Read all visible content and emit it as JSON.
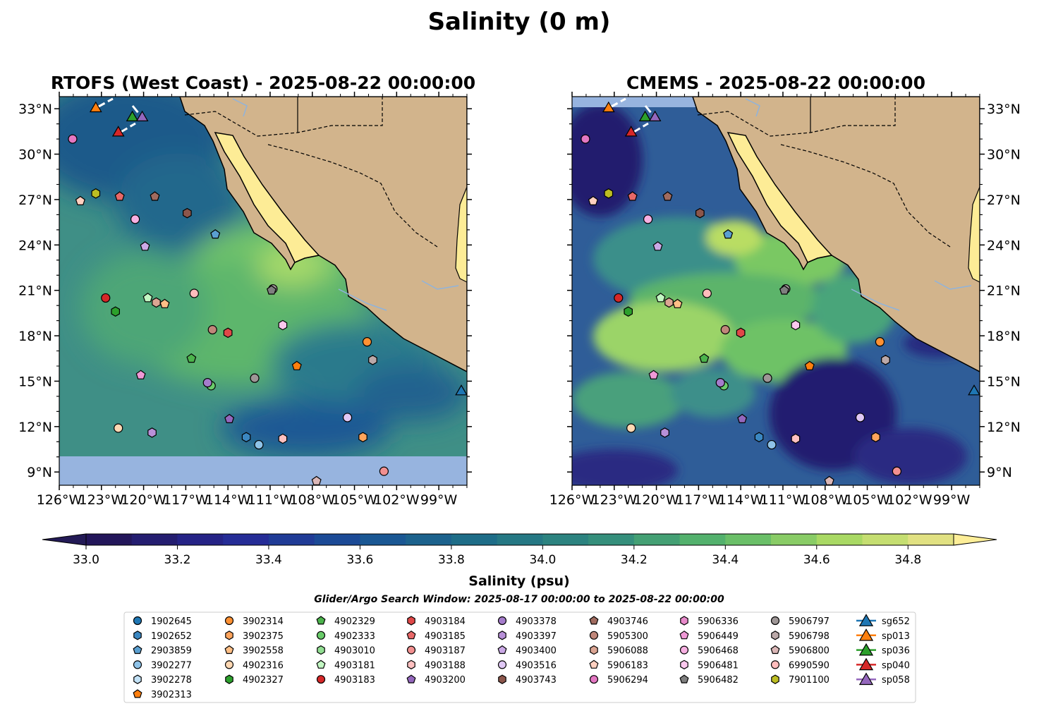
{
  "figure": {
    "title": "Salinity (0 m)",
    "left_title": "RTOFS (West Coast) - 2025-08-22 00:00:00",
    "right_title": "CMEMS - 2025-08-22 00:00:00",
    "search_window": "Glider/Argo Search Window: 2025-08-17 00:00:00 to 2025-08-22 00:00:00"
  },
  "colorbar": {
    "label": "Salinity (psu)",
    "min": 33.0,
    "max": 34.9,
    "step": 0.1,
    "ticks": [
      "33.0",
      "33.2",
      "33.4",
      "33.6",
      "33.8",
      "34.0",
      "34.2",
      "34.4",
      "34.6",
      "34.8"
    ],
    "extend": "both"
  },
  "axes": {
    "lon_range": [
      -126,
      -97
    ],
    "lat_range": [
      8.1,
      33.8
    ],
    "lon_ticks": [
      "126°W",
      "123°W",
      "120°W",
      "117°W",
      "114°W",
      "111°W",
      "108°W",
      "105°W",
      "102°W",
      "99°W"
    ],
    "lat_ticks": [
      "9°N",
      "12°N",
      "15°N",
      "18°N",
      "21°N",
      "24°N",
      "27°N",
      "30°N",
      "33°N"
    ]
  },
  "colors": {
    "land": "#d2b48c",
    "inland_water": "#fdec96",
    "nodata": "#97b4df"
  },
  "legend": [
    {
      "id": "1902645",
      "shape": "circle",
      "color": "#1f77b4"
    },
    {
      "id": "1902652",
      "shape": "hexagon",
      "color": "#3b87c1"
    },
    {
      "id": "2903859",
      "shape": "pentagon",
      "color": "#5a9fd0"
    },
    {
      "id": "3902277",
      "shape": "circle",
      "color": "#8fc3e8"
    },
    {
      "id": "3902278",
      "shape": "hexagon",
      "color": "#c3e2f7"
    },
    {
      "id": "3902313",
      "shape": "pentagon",
      "color": "#ff7f0e"
    },
    {
      "id": "3902314",
      "shape": "circle",
      "color": "#ff9133"
    },
    {
      "id": "3902375",
      "shape": "hexagon",
      "color": "#ffa45c"
    },
    {
      "id": "3902558",
      "shape": "pentagon",
      "color": "#ffbf86"
    },
    {
      "id": "4902316",
      "shape": "circle",
      "color": "#ffd8b3"
    },
    {
      "id": "4902327",
      "shape": "hexagon",
      "color": "#2ca02c"
    },
    {
      "id": "4902329",
      "shape": "pentagon",
      "color": "#4cb34c"
    },
    {
      "id": "4902333",
      "shape": "circle",
      "color": "#6acc6a"
    },
    {
      "id": "4903010",
      "shape": "hexagon",
      "color": "#92de92"
    },
    {
      "id": "4903181",
      "shape": "pentagon",
      "color": "#c3f7c3"
    },
    {
      "id": "4903183",
      "shape": "circle",
      "color": "#d62728"
    },
    {
      "id": "4903184",
      "shape": "hexagon",
      "color": "#e04848"
    },
    {
      "id": "4903185",
      "shape": "pentagon",
      "color": "#e86868"
    },
    {
      "id": "4903187",
      "shape": "circle",
      "color": "#f29090"
    },
    {
      "id": "4903188",
      "shape": "hexagon",
      "color": "#ffc0c0"
    },
    {
      "id": "4903200",
      "shape": "pentagon",
      "color": "#9467bd"
    },
    {
      "id": "4903378",
      "shape": "circle",
      "color": "#a57ccb"
    },
    {
      "id": "4903397",
      "shape": "hexagon",
      "color": "#b890d8"
    },
    {
      "id": "4903400",
      "shape": "pentagon",
      "color": "#cba9e6"
    },
    {
      "id": "4903516",
      "shape": "circle",
      "color": "#e0c8f5"
    },
    {
      "id": "4903743",
      "shape": "hexagon",
      "color": "#8c564b"
    },
    {
      "id": "4903746",
      "shape": "pentagon",
      "color": "#a06b5f"
    },
    {
      "id": "5905300",
      "shape": "circle",
      "color": "#c0877a"
    },
    {
      "id": "5906088",
      "shape": "hexagon",
      "color": "#dba593"
    },
    {
      "id": "5906183",
      "shape": "pentagon",
      "color": "#ffd0c0"
    },
    {
      "id": "5906294",
      "shape": "circle",
      "color": "#e377c2"
    },
    {
      "id": "5906336",
      "shape": "hexagon",
      "color": "#e88acb"
    },
    {
      "id": "5906449",
      "shape": "pentagon",
      "color": "#ef99d6"
    },
    {
      "id": "5906468",
      "shape": "circle",
      "color": "#f7b0e2"
    },
    {
      "id": "5906481",
      "shape": "hexagon",
      "color": "#fcc8ee"
    },
    {
      "id": "5906482",
      "shape": "pentagon",
      "color": "#7f7f7f"
    },
    {
      "id": "5906797",
      "shape": "circle",
      "color": "#9e9696"
    },
    {
      "id": "5906798",
      "shape": "hexagon",
      "color": "#bba9a9"
    },
    {
      "id": "5906800",
      "shape": "pentagon",
      "color": "#dbb7b7"
    },
    {
      "id": "6990590",
      "shape": "circle",
      "color": "#ffbcbc"
    },
    {
      "id": "7901100",
      "shape": "hexagon",
      "color": "#bcbd22"
    },
    {
      "id": "sg652",
      "shape": "triangle",
      "color": "#1f77b4"
    },
    {
      "id": "sp013",
      "shape": "triangle",
      "color": "#ff7f0e"
    },
    {
      "id": "sp036",
      "shape": "triangle",
      "color": "#2ca02c"
    },
    {
      "id": "sp040",
      "shape": "triangle",
      "color": "#d62728"
    },
    {
      "id": "sp058",
      "shape": "triangle",
      "color": "#9467bd"
    }
  ],
  "markers": [
    {
      "id": "5906294",
      "lon": -125.05,
      "lat": 31.0
    },
    {
      "id": "5906183",
      "lon": -124.5,
      "lat": 26.9
    },
    {
      "id": "7901100",
      "lon": -123.4,
      "lat": 27.4
    },
    {
      "id": "4903185",
      "lon": -121.7,
      "lat": 27.2
    },
    {
      "id": "4903746",
      "lon": -119.2,
      "lat": 27.2
    },
    {
      "id": "4903743",
      "lon": -116.9,
      "lat": 26.1
    },
    {
      "id": "5906468",
      "lon": -120.6,
      "lat": 25.7
    },
    {
      "id": "2903859",
      "lon": -114.9,
      "lat": 24.7
    },
    {
      "id": "4903400",
      "lon": -119.9,
      "lat": 23.9
    },
    {
      "id": "4903183",
      "lon": -122.7,
      "lat": 20.5
    },
    {
      "id": "4903181",
      "lon": -119.7,
      "lat": 20.5
    },
    {
      "id": "5906088",
      "lon": -119.1,
      "lat": 20.2
    },
    {
      "id": "3902558",
      "lon": -118.5,
      "lat": 20.1
    },
    {
      "id": "4902327",
      "lon": -122.0,
      "lat": 19.6
    },
    {
      "id": "6990590",
      "lon": -116.4,
      "lat": 20.8
    },
    {
      "id": "5906797",
      "lon": -110.8,
      "lat": 21.1
    },
    {
      "id": "5906482",
      "lon": -110.9,
      "lat": 21.0
    },
    {
      "id": "5906481",
      "lon": -110.1,
      "lat": 18.7
    },
    {
      "id": "5905300",
      "lon": -115.1,
      "lat": 18.4
    },
    {
      "id": "4903184",
      "lon": -114.0,
      "lat": 18.2
    },
    {
      "id": "3902314",
      "lon": -104.1,
      "lat": 17.6
    },
    {
      "id": "5906798",
      "lon": -103.7,
      "lat": 16.4
    },
    {
      "id": "3902313",
      "lon": -109.1,
      "lat": 16.0
    },
    {
      "id": "4902329",
      "lon": -116.6,
      "lat": 16.5
    },
    {
      "id": "5906449",
      "lon": -120.2,
      "lat": 15.4
    },
    {
      "id": "4902333",
      "lon": -115.2,
      "lat": 14.7
    },
    {
      "id": "4903378",
      "lon": -115.45,
      "lat": 14.9
    },
    {
      "id": "5906797",
      "lon": -112.1,
      "lat": 15.2
    },
    {
      "id": "4902316",
      "lon": -121.8,
      "lat": 11.9
    },
    {
      "id": "4903397",
      "lon": -119.4,
      "lat": 11.6
    },
    {
      "id": "4903200",
      "lon": -113.9,
      "lat": 12.5
    },
    {
      "id": "1902652",
      "lon": -112.7,
      "lat": 11.3
    },
    {
      "id": "3902277",
      "lon": -111.8,
      "lat": 10.8
    },
    {
      "id": "4903188",
      "lon": -110.1,
      "lat": 11.2
    },
    {
      "id": "4903516",
      "lon": -105.5,
      "lat": 12.6
    },
    {
      "id": "3902375",
      "lon": -104.4,
      "lat": 11.3
    },
    {
      "id": "4903187",
      "lon": -102.9,
      "lat": 9.05
    },
    {
      "id": "5906800",
      "lon": -107.7,
      "lat": 8.4
    },
    {
      "id": "sg652",
      "lon": -97.4,
      "lat": 14.4
    },
    {
      "id": "sp013",
      "lon": -123.4,
      "lat": 33.1
    },
    {
      "id": "sp036",
      "lon": -120.8,
      "lat": 32.5
    },
    {
      "id": "sp058",
      "lon": -120.1,
      "lat": 32.5
    },
    {
      "id": "sp040",
      "lon": -121.8,
      "lat": 31.5
    }
  ]
}
